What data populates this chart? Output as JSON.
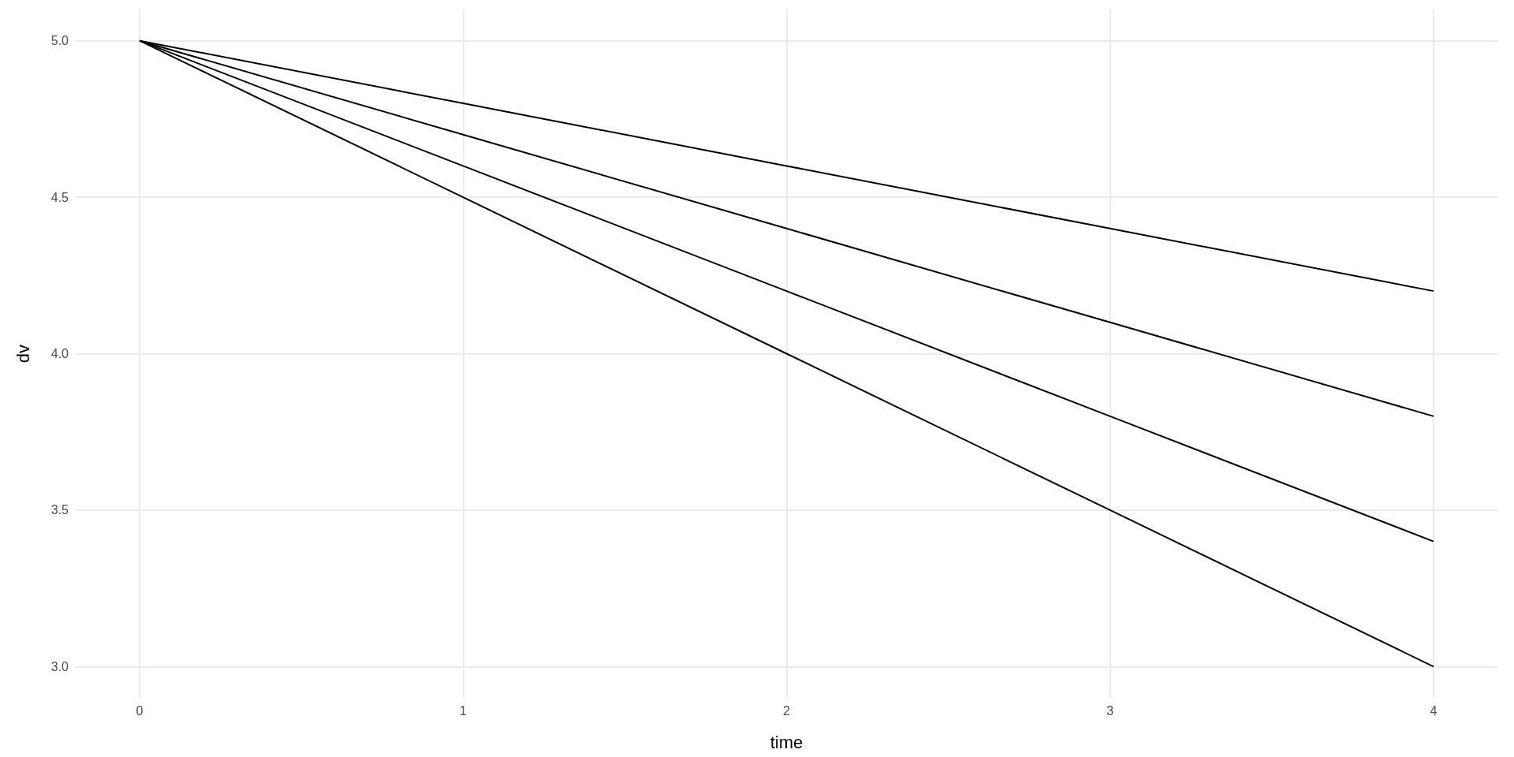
{
  "chart_data": {
    "type": "line",
    "xlabel": "time",
    "ylabel": "dv",
    "x": [
      0,
      1,
      2,
      3,
      4
    ],
    "series": [
      {
        "color": "#000000",
        "values": [
          5.0,
          4.8,
          4.6,
          4.4,
          4.2
        ]
      },
      {
        "color": "#000000",
        "values": [
          5.0,
          4.7,
          4.4,
          4.1,
          3.8
        ]
      },
      {
        "color": "#000000",
        "values": [
          5.0,
          4.6,
          4.2,
          3.8,
          3.4
        ]
      },
      {
        "color": "#000000",
        "values": [
          5.0,
          4.5,
          4.0,
          3.5,
          3.0
        ]
      }
    ],
    "xlim": [
      -0.2,
      4.2
    ],
    "xticks": [
      0,
      1,
      2,
      3,
      4
    ],
    "ylim": [
      2.9,
      5.1
    ],
    "yticks": [
      {
        "value": 3,
        "label": "3.0"
      },
      3.5,
      {
        "value": 4,
        "label": "4.0"
      },
      4.5,
      {
        "value": 5,
        "label": "5.0"
      }
    ],
    "grid": true,
    "marker": "none",
    "line_style": "solid"
  }
}
